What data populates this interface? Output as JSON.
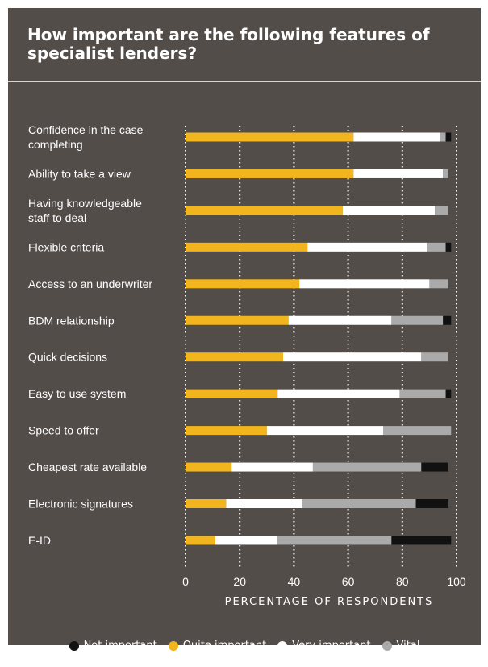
{
  "chart_data": {
    "type": "bar",
    "orientation": "horizontal",
    "stacked": true,
    "title": "How important are the following features of specialist lenders?",
    "xlabel": "PERCENTAGE OF RESPONDENTS",
    "xlim": [
      0,
      100
    ],
    "xticks": [
      "0",
      "20",
      "40",
      "60",
      "80",
      "100"
    ],
    "grid": "vertical dotted",
    "legend_position": "bottom",
    "categories": [
      "Confidence in the case completing",
      "Ability to take a view",
      "Having knowledgeable staff to deal",
      "Flexible criteria",
      "Access to an underwriter",
      "BDM relationship",
      "Quick decisions",
      "Easy to use system",
      "Speed to offer",
      "Cheapest rate available",
      "Electronic signatures",
      "E-ID"
    ],
    "series": [
      {
        "name": "Quite important",
        "color": "#f2b51d",
        "values": [
          62,
          62,
          58,
          45,
          42,
          38,
          36,
          34,
          30,
          17,
          15,
          11
        ]
      },
      {
        "name": "Very important",
        "color": "#ffffff",
        "values": [
          32,
          33,
          34,
          44,
          48,
          38,
          51,
          45,
          43,
          30,
          28,
          23
        ]
      },
      {
        "name": "Vital",
        "color": "#aaaaaa",
        "values": [
          2,
          2,
          5,
          7,
          7,
          19,
          10,
          17,
          25,
          40,
          42,
          42
        ]
      },
      {
        "name": "Not important",
        "color": "#111111",
        "values": [
          2,
          0,
          0,
          2,
          0,
          3,
          0,
          2,
          0,
          10,
          12,
          22
        ]
      }
    ],
    "legend_order": [
      "Not important",
      "Quite important",
      "Very important",
      "Vital"
    ]
  }
}
